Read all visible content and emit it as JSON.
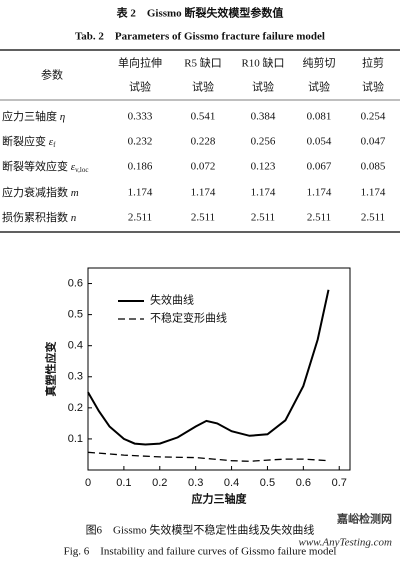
{
  "table": {
    "caption_cn": "表 2　Gissmo 断裂失效模型参数值",
    "caption_en": "Tab. 2　Parameters of Gissmo fracture failure model",
    "header": [
      [
        "参数"
      ],
      [
        "单向拉伸",
        "试验"
      ],
      [
        "R5 缺口",
        "试验"
      ],
      [
        "R10 缺口",
        "试验"
      ],
      [
        "纯剪切",
        "试验"
      ],
      [
        "拉剪",
        "试验"
      ]
    ],
    "rows": [
      {
        "label": "应力三轴度 ",
        "symbol": "η",
        "cells": [
          "0.333",
          "0.541",
          "0.384",
          "0.081",
          "0.254"
        ]
      },
      {
        "label": "断裂应变 ",
        "symbol": "ε",
        "sub": "f",
        "cells": [
          "0.232",
          "0.228",
          "0.256",
          "0.054",
          "0.047"
        ]
      },
      {
        "label": "断裂等效应变 ",
        "symbol": "ε",
        "sub": "v,loc",
        "cells": [
          "0.186",
          "0.072",
          "0.123",
          "0.067",
          "0.085"
        ]
      },
      {
        "label": "应力衰减指数 ",
        "symbol": "m",
        "cells": [
          "1.174",
          "1.174",
          "1.174",
          "1.174",
          "1.174"
        ]
      },
      {
        "label": "损伤累积指数 ",
        "symbol": "n",
        "cells": [
          "2.511",
          "2.511",
          "2.511",
          "2.511",
          "2.511"
        ]
      }
    ]
  },
  "chart_data": {
    "type": "line",
    "x_label": "应力三轴度",
    "y_label": "真塑性应变",
    "xlim": [
      0,
      0.73
    ],
    "xticks": [
      0,
      0.1,
      0.2,
      0.3,
      0.4,
      0.5,
      0.6,
      0.7
    ],
    "ylim": [
      0,
      0.65
    ],
    "yticks": [
      0.1,
      0.2,
      0.3,
      0.4,
      0.5,
      0.6
    ],
    "legend": "upper-left",
    "series": [
      {
        "name": "失效曲线",
        "color": "#000000",
        "dash": false,
        "x": [
          0,
          0.03,
          0.06,
          0.1,
          0.13,
          0.16,
          0.2,
          0.25,
          0.3,
          0.33,
          0.36,
          0.4,
          0.45,
          0.5,
          0.55,
          0.6,
          0.64,
          0.67
        ],
        "values": [
          0.25,
          0.19,
          0.14,
          0.1,
          0.085,
          0.082,
          0.085,
          0.105,
          0.14,
          0.158,
          0.15,
          0.125,
          0.11,
          0.115,
          0.16,
          0.27,
          0.42,
          0.58
        ]
      },
      {
        "name": "不稳定变形曲线",
        "color": "#000000",
        "dash": true,
        "x": [
          0,
          0.1,
          0.2,
          0.3,
          0.35,
          0.4,
          0.45,
          0.5,
          0.55,
          0.6,
          0.67
        ],
        "values": [
          0.057,
          0.048,
          0.042,
          0.04,
          0.035,
          0.03,
          0.028,
          0.032,
          0.035,
          0.035,
          0.03
        ]
      }
    ]
  },
  "figure": {
    "caption_cn": "图6　Gissmo 失效模型不稳定性曲线及失效曲线",
    "caption_en": "Fig. 6　Instability and failure curves of Gissmo failure model"
  },
  "watermark": {
    "cn": "嘉峪检测网",
    "url": "www.AnyTesting.com"
  }
}
